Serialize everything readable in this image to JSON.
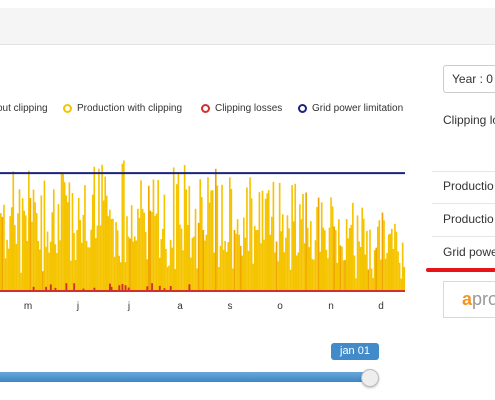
{
  "legend": [
    {
      "label": "out clipping",
      "color": "#aaaaaa"
    },
    {
      "label": "Production with clipping",
      "color": "#f5c400"
    },
    {
      "label": "Clipping losses",
      "color": "#d32f2f"
    },
    {
      "label": "Grid power limitation",
      "color": "#1a237e"
    }
  ],
  "sidepanel": {
    "year_select": "Year : 0",
    "clipping_label": "Clipping lo",
    "rows": [
      "Productio",
      "Productio",
      "Grid powe"
    ],
    "logo_a": "a",
    "logo_rest": "pro"
  },
  "slider": {
    "tooltip": "jan 01",
    "value_fraction": 1.0
  },
  "chart_data": {
    "type": "bar",
    "months": [
      "m",
      "j",
      "j",
      "a",
      "s",
      "o",
      "n",
      "d"
    ],
    "ylim": [
      0,
      145
    ],
    "grid_power_limit": 100,
    "clipping_losses_note": "small red marks near baseline",
    "series": [
      {
        "name": "Production with clipping",
        "color": "#f5c400"
      },
      {
        "name": "Clipping losses",
        "color": "#d32f2f"
      },
      {
        "name": "Grid power limitation",
        "color": "#1a237e"
      }
    ],
    "days_visible": 260,
    "envelope": [
      [
        0,
        92
      ],
      [
        40,
        98
      ],
      [
        80,
        101
      ],
      [
        120,
        98
      ],
      [
        160,
        92
      ],
      [
        200,
        80
      ],
      [
        240,
        65
      ],
      [
        260,
        50
      ]
    ]
  }
}
